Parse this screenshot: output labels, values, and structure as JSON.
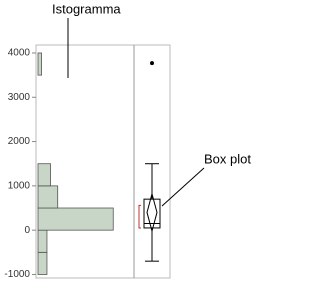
{
  "chart_data": {
    "type": "histogram",
    "bins": [
      -1000,
      -500,
      0,
      500,
      1000,
      1500,
      2000,
      2500,
      3000,
      3500,
      4000
    ],
    "counts": [
      5,
      5,
      42,
      11,
      7,
      0,
      0,
      0,
      0,
      2
    ],
    "color": "#c8d6c8",
    "xlim": [
      0,
      48
    ],
    "ylim": [
      -1080,
      4180
    ],
    "yticks": [
      -1000,
      0,
      1000,
      2000,
      3000,
      4000
    ],
    "box": {
      "whisker_low": -700,
      "q1": 50,
      "median": 150,
      "q3": 700,
      "whisker_high": 1500,
      "mean": 400,
      "mean_ci": [
        -20,
        820
      ],
      "shortest_half": [
        50,
        560
      ],
      "outliers": [
        3770
      ]
    },
    "annotations": [
      {
        "text": "Istogramma"
      },
      {
        "text": "Box plot"
      }
    ]
  }
}
